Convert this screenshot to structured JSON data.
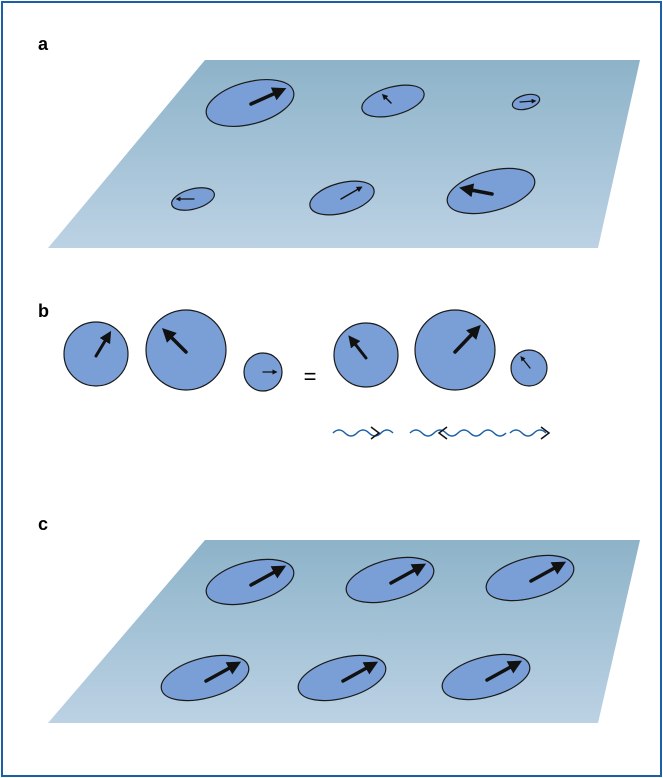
{
  "panels": [
    {
      "label": "a"
    },
    {
      "label": "b"
    },
    {
      "label": "c"
    }
  ],
  "equals": "="
}
